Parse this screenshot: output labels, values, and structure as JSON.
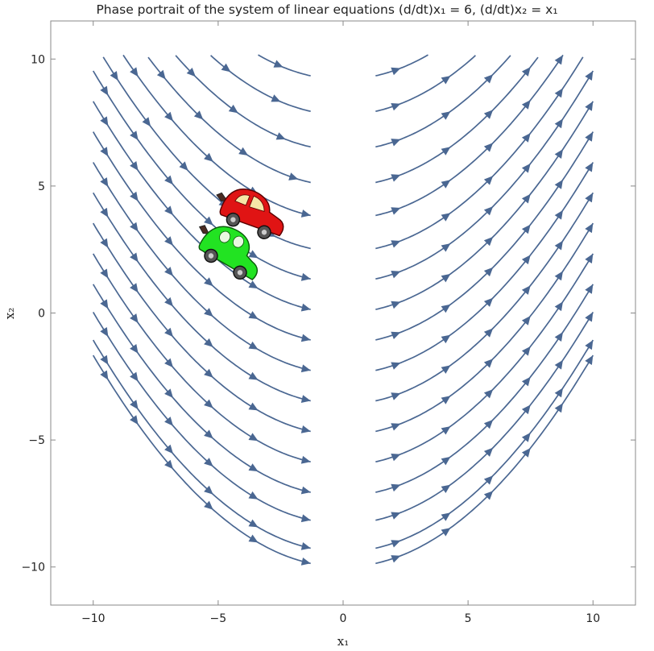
{
  "chart_data": {
    "type": "streamplot",
    "title": "Phase portrait of the system of linear equations (d/dt)x₁ = 6,  (d/dt)x₂ = x₁",
    "xlabel": "x₁",
    "ylabel": "x₂",
    "xlim": [
      -11.7,
      11.7
    ],
    "ylim": [
      -11.5,
      11.5
    ],
    "xticks": [
      -10,
      -5,
      0,
      5,
      10
    ],
    "yticks": [
      -10,
      -5,
      0,
      5,
      10
    ],
    "xtick_labels": [
      "−10",
      "−5",
      "0",
      "5",
      "10"
    ],
    "ytick_labels": [
      "−10",
      "−5",
      "0",
      "5",
      "10"
    ],
    "system": {
      "dx1_dt": 6,
      "dx2_dt": "x1"
    },
    "streamline_vertex_x2": [
      9.2,
      7.8,
      6.4,
      5.0,
      3.7,
      2.4,
      1.2,
      0.0,
      -1.2,
      -2.4,
      -3.6,
      -4.8,
      -6.0,
      -7.2,
      -8.3,
      -9.4,
      -10.0
    ],
    "stream_color": "#4a6792",
    "grid": false,
    "legend": "none",
    "decorations": [
      {
        "icon": "red-car-icon",
        "color": "#e01414"
      },
      {
        "icon": "green-car-icon",
        "color": "#22e322"
      }
    ]
  }
}
